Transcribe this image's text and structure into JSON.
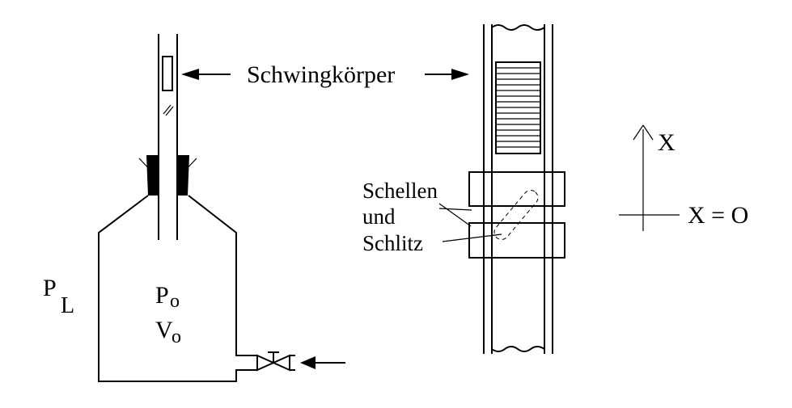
{
  "labels": {
    "oscillator": "Schwingkörper",
    "clamps": "Schellen",
    "and": "und",
    "slot": "Schlitz",
    "p_l_main": "P",
    "p_l_sub": "L",
    "p_o_main": "P",
    "p_o_sub": "o",
    "v_o_main": "V",
    "v_o_sub": "o",
    "x_axis": "X",
    "x_origin": "X = O"
  },
  "colors": {
    "ink": "#000000",
    "background": "#ffffff"
  }
}
